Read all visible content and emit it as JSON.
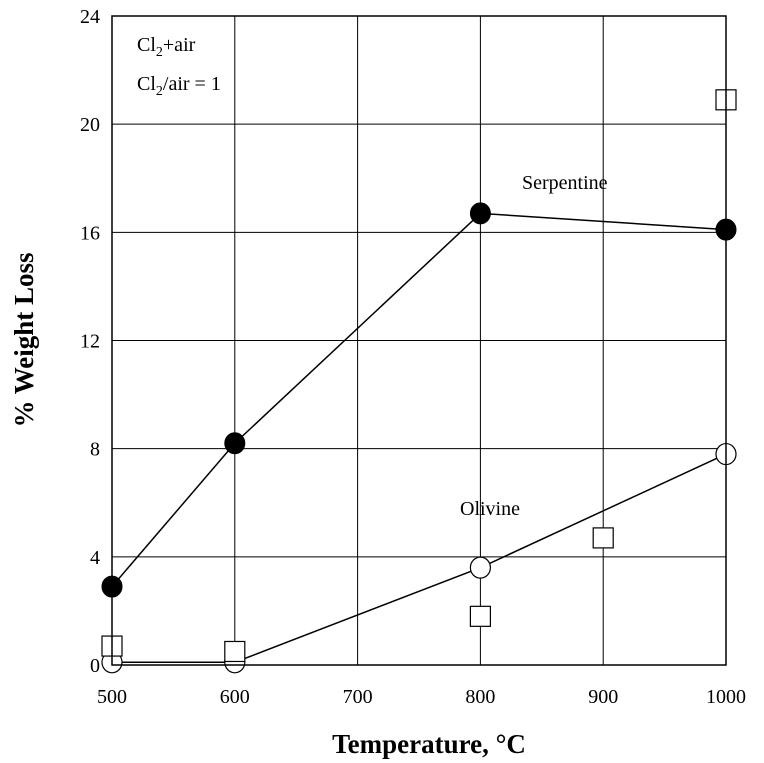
{
  "chart_data": {
    "type": "scatter",
    "xlabel": "Temperature, °C",
    "ylabel": "% Weight Loss",
    "xlim": [
      500,
      1000
    ],
    "ylim": [
      0,
      24
    ],
    "xticks": [
      500,
      600,
      700,
      800,
      900,
      1000
    ],
    "yticks": [
      0,
      4,
      8,
      12,
      16,
      20,
      24
    ],
    "grid": true,
    "annotations": {
      "condition_line1": {
        "main": "Cl",
        "sub": "2",
        "rest": "+air"
      },
      "condition_line2": {
        "main": "Cl",
        "sub": "2",
        "rest": "/air = 1"
      }
    },
    "series": [
      {
        "name": "Serpentine",
        "marker": "filled-circle",
        "line": true,
        "x": [
          500,
          600,
          800,
          1000
        ],
        "y": [
          2.9,
          8.2,
          16.7,
          16.1
        ]
      },
      {
        "name": "Olivine",
        "marker": "open-circle",
        "line": true,
        "x": [
          500,
          600,
          800,
          1000
        ],
        "y": [
          0.1,
          0.1,
          3.6,
          7.8
        ]
      },
      {
        "name": "",
        "marker": "open-square",
        "line": false,
        "x": [
          500,
          600,
          800,
          900,
          1000
        ],
        "y": [
          0.7,
          0.5,
          1.8,
          4.7,
          20.9
        ]
      }
    ],
    "colors": {
      "ink": "#000000",
      "background": "#ffffff"
    }
  }
}
